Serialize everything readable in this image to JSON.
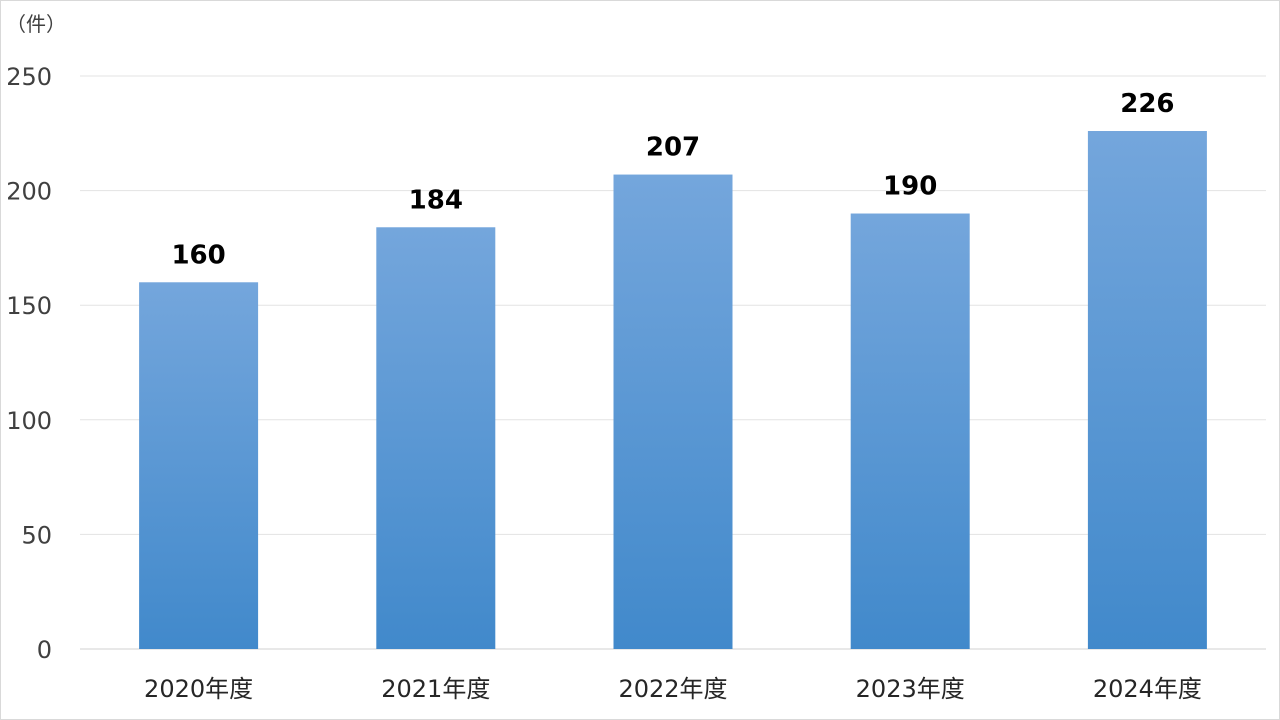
{
  "chart_data": {
    "type": "bar",
    "unit_label": "（件）",
    "categories": [
      "2020年度",
      "2021年度",
      "2022年度",
      "2023年度",
      "2024年度"
    ],
    "values": [
      160,
      184,
      207,
      190,
      226
    ],
    "ylim": [
      0,
      250
    ],
    "yticks": [
      0,
      50,
      100,
      150,
      200,
      250
    ],
    "grid": true,
    "bar_color_top": "#74a6dc",
    "bar_color_bottom": "#4189cb",
    "data_labels": true
  }
}
